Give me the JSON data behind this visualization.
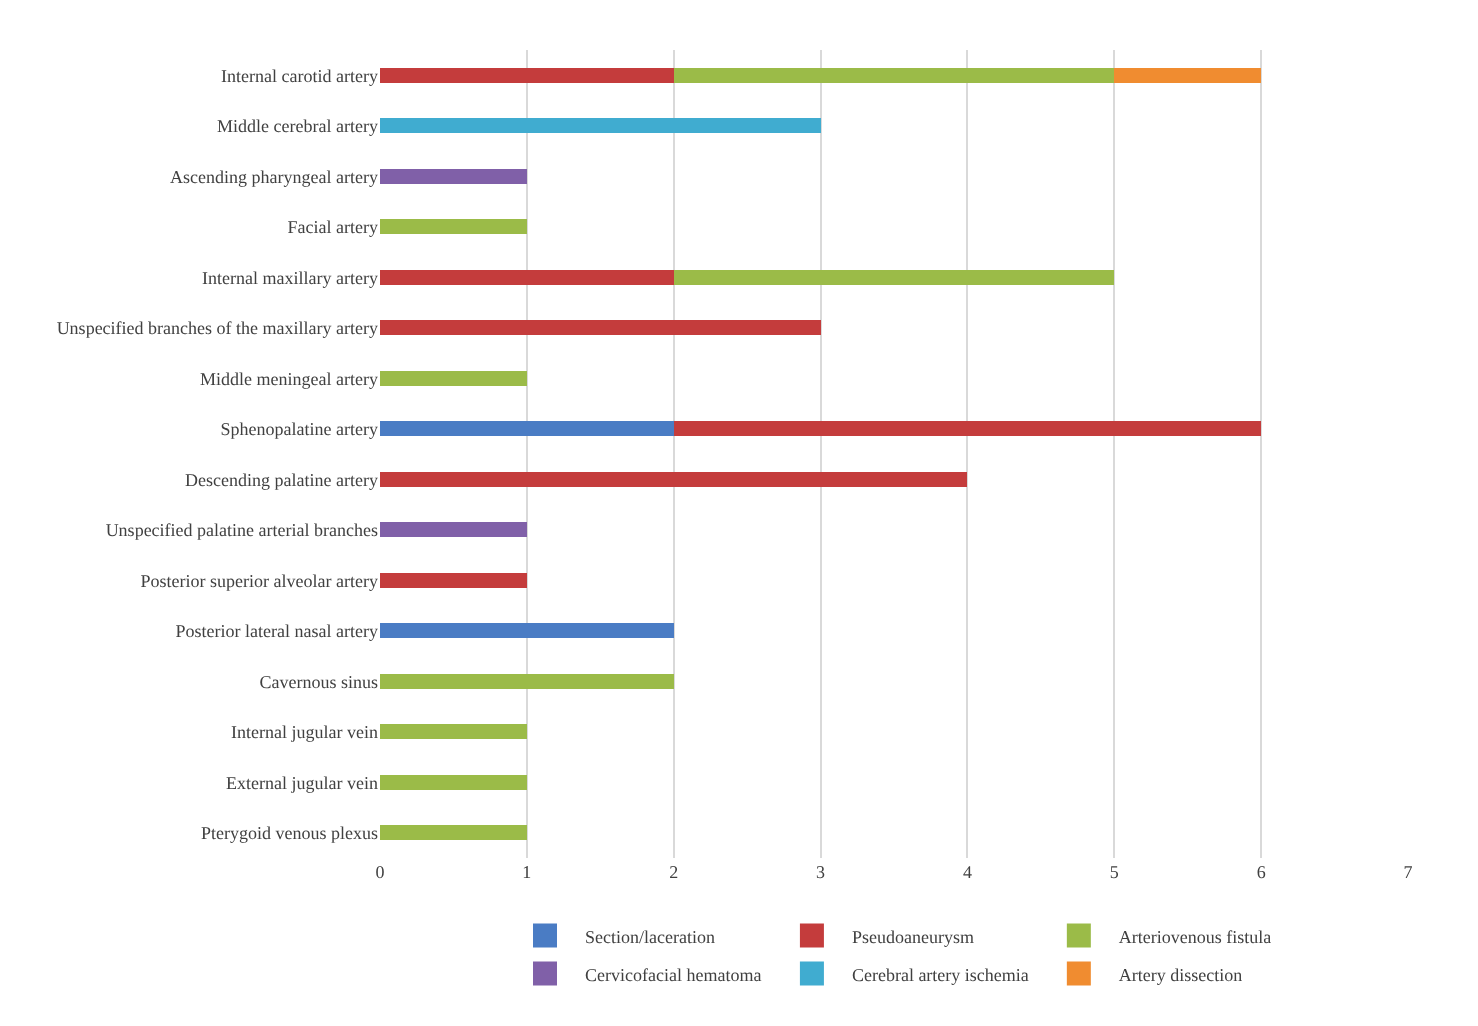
{
  "chart_data": {
    "type": "bar",
    "orientation": "horizontal",
    "stacked": true,
    "categories": [
      "Internal carotid artery",
      "Middle cerebral artery",
      "Ascending pharyngeal artery",
      "Facial artery",
      "Internal maxillary artery",
      "Unspecified branches of the maxillary artery",
      "Middle meningeal artery",
      "Sphenopalatine artery",
      "Descending palatine artery",
      "Unspecified palatine arterial branches",
      "Posterior superior alveolar artery",
      "Posterior lateral nasal artery",
      "Cavernous sinus",
      "Internal jugular vein",
      "External jugular vein",
      "Pterygoid venous plexus"
    ],
    "series": [
      {
        "name": "Section/laceration",
        "color": "#4a7cc4",
        "values": [
          null,
          null,
          null,
          null,
          null,
          null,
          null,
          2,
          null,
          null,
          null,
          2,
          null,
          null,
          null,
          null
        ]
      },
      {
        "name": "Pseudoaneurysm",
        "color": "#c43c3c",
        "values": [
          2,
          null,
          null,
          null,
          2,
          3,
          null,
          4,
          4,
          null,
          1,
          null,
          null,
          null,
          null,
          null
        ]
      },
      {
        "name": "Arteriovenous fistula",
        "color": "#9bbb48",
        "values": [
          3,
          null,
          null,
          1,
          3,
          null,
          1,
          null,
          null,
          null,
          null,
          null,
          2,
          1,
          1,
          1
        ]
      },
      {
        "name": "Cervicofacial hematoma",
        "color": "#8060a8",
        "values": [
          null,
          null,
          1,
          null,
          null,
          null,
          null,
          null,
          null,
          1,
          null,
          null,
          null,
          null,
          null,
          null
        ]
      },
      {
        "name": "Cerebral artery ischemia",
        "color": "#40acd0",
        "values": [
          null,
          3,
          null,
          null,
          null,
          null,
          null,
          null,
          null,
          null,
          null,
          null,
          null,
          null,
          null,
          null
        ]
      },
      {
        "name": "Artery dissection",
        "color": "#f08c30",
        "values": [
          1,
          null,
          null,
          null,
          null,
          null,
          null,
          null,
          null,
          null,
          null,
          null,
          null,
          null,
          null,
          null
        ]
      }
    ],
    "xlim": [
      0,
      7
    ],
    "xticks": [
      0,
      1,
      2,
      3,
      4,
      5,
      6,
      7
    ],
    "grid": "x",
    "legend": "bottom"
  }
}
